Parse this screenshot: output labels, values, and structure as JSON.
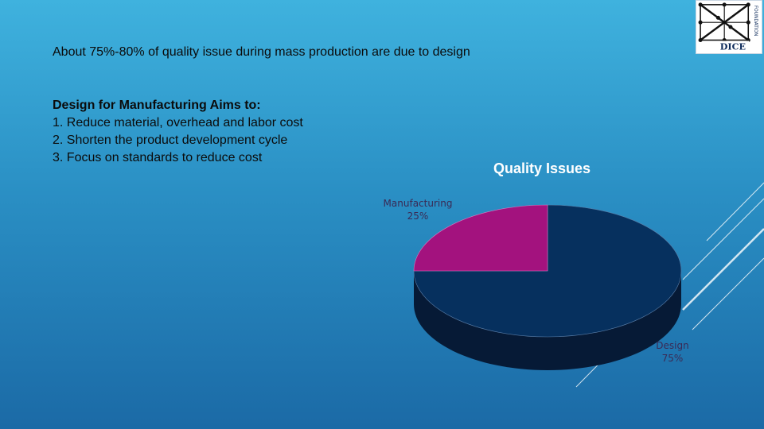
{
  "headline": "About 75%-80% of quality issue during mass production are due to design",
  "aims": {
    "title": "Design for Manufacturing Aims to:",
    "items": [
      "1. Reduce material, overhead and labor cost",
      "2. Shorten the product development cycle",
      "3. Focus on standards to reduce cost"
    ]
  },
  "logo": {
    "name": "DICE",
    "tagline": "FOUNDATION"
  },
  "colors": {
    "design": "#06305e",
    "design_side": "#061a36",
    "manufacturing": "#a3127e",
    "label_text": "#3a2a55"
  },
  "chart_data": {
    "type": "pie",
    "title": "Quality Issues",
    "slices": [
      {
        "label": "Design",
        "value": 75,
        "value_label": "75%"
      },
      {
        "label": "Manufacturing",
        "value": 25,
        "value_label": "25%"
      }
    ]
  }
}
